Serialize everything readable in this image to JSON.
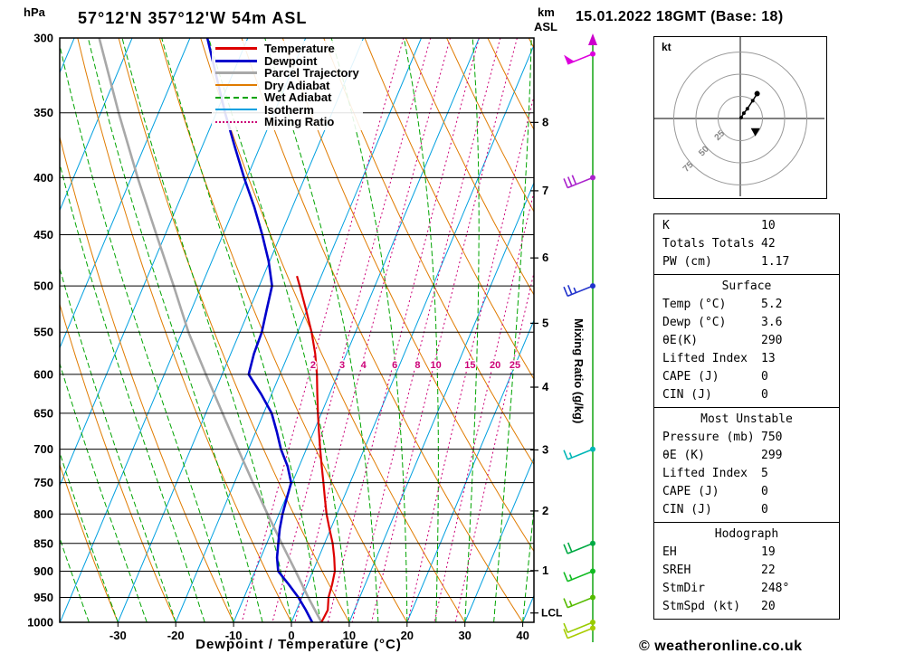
{
  "header": {
    "pressure_unit": "hPa",
    "title": "57°12'N 357°12'W 54m ASL",
    "km_label": "km",
    "asl_label": "ASL",
    "datetime": "15.01.2022 18GMT (Base: 18)"
  },
  "axes": {
    "x_label": "Dewpoint / Temperature (°C)",
    "mixing_ratio_label": "Mixing Ratio (g/kg)",
    "lcl_label": "LCL"
  },
  "legend": {
    "items": [
      {
        "label": "Temperature",
        "color": "#dd0000",
        "weight": 3,
        "line_style": "solid"
      },
      {
        "label": "Dewpoint",
        "color": "#0000cc",
        "weight": 3,
        "line_style": "solid"
      },
      {
        "label": "Parcel Trajectory",
        "color": "#a8a8a8",
        "weight": 3,
        "line_style": "solid"
      },
      {
        "label": "Dry Adiabat",
        "color": "#e07b00",
        "weight": 2,
        "line_style": "solid"
      },
      {
        "label": "Wet Adiabat",
        "color": "#00a400",
        "weight": 2,
        "line_style": "dashed"
      },
      {
        "label": "Isotherm",
        "color": "#00a0e0",
        "weight": 2,
        "line_style": "solid"
      },
      {
        "label": "Mixing Ratio",
        "color": "#cc0077",
        "weight": 2,
        "line_style": "dotted"
      }
    ]
  },
  "hodograph": {
    "kt_label": "kt",
    "rings_kt": [
      25,
      50,
      75
    ],
    "trace_uv_kt": [
      [
        1,
        1
      ],
      [
        4,
        6
      ],
      [
        8,
        11
      ],
      [
        14,
        20
      ],
      [
        19,
        28
      ]
    ],
    "storm_marker_uv_kt": [
      17,
      -15
    ]
  },
  "panels": {
    "indices": {
      "rows": [
        {
          "label": "K",
          "value": "10"
        },
        {
          "label": "Totals Totals",
          "value": "42"
        },
        {
          "label": "PW (cm)",
          "value": "1.17"
        }
      ]
    },
    "surface": {
      "title": "Surface",
      "rows": [
        {
          "label": "Temp (°C)",
          "value": "5.2"
        },
        {
          "label": "Dewp (°C)",
          "value": "3.6"
        },
        {
          "label": "θE(K)",
          "value": "290"
        },
        {
          "label": "Lifted Index",
          "value": "13"
        },
        {
          "label": "CAPE (J)",
          "value": "0"
        },
        {
          "label": "CIN (J)",
          "value": "0"
        }
      ]
    },
    "most_unstable": {
      "title": "Most Unstable",
      "rows": [
        {
          "label": "Pressure (mb)",
          "value": "750"
        },
        {
          "label": "θE (K)",
          "value": "299"
        },
        {
          "label": "Lifted Index",
          "value": "5"
        },
        {
          "label": "CAPE (J)",
          "value": "0"
        },
        {
          "label": "CIN (J)",
          "value": "0"
        }
      ]
    },
    "hodograph_stats": {
      "title": "Hodograph",
      "rows": [
        {
          "label": "EH",
          "value": "19"
        },
        {
          "label": "SREH",
          "value": "22"
        },
        {
          "label": "StmDir",
          "value": "248°"
        },
        {
          "label": "StmSpd (kt)",
          "value": "20"
        }
      ]
    }
  },
  "footer": {
    "text": "© weatheronline.co.uk"
  },
  "chart_data": {
    "type": "skewt-logp",
    "title": "57°12'N 357°12'W 54m ASL sounding 15.01.2022 18GMT",
    "pressure_levels_hpa": [
      300,
      350,
      400,
      450,
      500,
      550,
      600,
      650,
      700,
      750,
      800,
      850,
      900,
      950,
      1000
    ],
    "temp_ticks_c": [
      -30,
      -20,
      -10,
      0,
      10,
      20,
      30,
      40
    ],
    "km_ticks": [
      {
        "km": 8,
        "hpa": 357
      },
      {
        "km": 7,
        "hpa": 411
      },
      {
        "km": 6,
        "hpa": 472
      },
      {
        "km": 5,
        "hpa": 540
      },
      {
        "km": 4,
        "hpa": 616
      },
      {
        "km": 3,
        "hpa": 701
      },
      {
        "km": 2,
        "hpa": 795
      },
      {
        "km": 1,
        "hpa": 899
      }
    ],
    "lcl_hpa": 981,
    "isotherms_c": {
      "min": -110,
      "max": 40,
      "step": 10
    },
    "dry_adiabats_theta_c": {
      "min": -60,
      "max": 170,
      "step": 10
    },
    "wet_adiabats_thetaw_c": {
      "min": -40,
      "max": 40,
      "step": 5
    },
    "mixing_ratio_gkg": [
      2,
      3,
      4,
      6,
      8,
      10,
      15,
      20,
      25
    ],
    "series": {
      "temperature": [
        [
          1000,
          5.2
        ],
        [
          975,
          5.4
        ],
        [
          950,
          4.6
        ],
        [
          925,
          4.3
        ],
        [
          900,
          3.8
        ],
        [
          875,
          2.7
        ],
        [
          850,
          1.4
        ],
        [
          825,
          -0.2
        ],
        [
          800,
          -1.8
        ],
        [
          775,
          -3.2
        ],
        [
          750,
          -4.6
        ],
        [
          725,
          -6.1
        ],
        [
          700,
          -7.6
        ],
        [
          675,
          -9.1
        ],
        [
          650,
          -10.6
        ],
        [
          625,
          -12.1
        ],
        [
          600,
          -13.6
        ],
        [
          575,
          -15.4
        ],
        [
          550,
          -17.6
        ],
        [
          525,
          -20.2
        ],
        [
          500,
          -23.0
        ],
        [
          490,
          -24.2
        ]
      ],
      "dewpoint": [
        [
          1000,
          3.6
        ],
        [
          975,
          1.6
        ],
        [
          950,
          -0.6
        ],
        [
          925,
          -3.2
        ],
        [
          900,
          -6.0
        ],
        [
          875,
          -7.2
        ],
        [
          850,
          -8.0
        ],
        [
          825,
          -8.8
        ],
        [
          800,
          -9.4
        ],
        [
          775,
          -9.8
        ],
        [
          750,
          -10.2
        ],
        [
          725,
          -12.0
        ],
        [
          700,
          -14.4
        ],
        [
          675,
          -16.4
        ],
        [
          650,
          -18.6
        ],
        [
          625,
          -21.8
        ],
        [
          600,
          -25.4
        ],
        [
          575,
          -26.0
        ],
        [
          550,
          -26.2
        ],
        [
          525,
          -27.0
        ],
        [
          500,
          -27.8
        ],
        [
          475,
          -30.2
        ],
        [
          450,
          -33.2
        ],
        [
          425,
          -36.6
        ],
        [
          400,
          -40.5
        ],
        [
          375,
          -44.4
        ],
        [
          350,
          -48.5
        ],
        [
          325,
          -52.6
        ],
        [
          300,
          -57.0
        ]
      ],
      "parcel": [
        [
          1000,
          5.2
        ],
        [
          950,
          1.1
        ],
        [
          900,
          -3.0
        ],
        [
          850,
          -7.4
        ],
        [
          800,
          -12.0
        ],
        [
          750,
          -16.8
        ],
        [
          700,
          -21.8
        ],
        [
          650,
          -27.1
        ],
        [
          600,
          -32.8
        ],
        [
          550,
          -38.9
        ],
        [
          500,
          -44.8
        ],
        [
          450,
          -51.5
        ],
        [
          400,
          -58.9
        ],
        [
          350,
          -66.9
        ],
        [
          300,
          -75.7
        ]
      ]
    },
    "wind_barbs": [
      {
        "hpa": 310,
        "speed_kt": 50,
        "color": "#dd00dd"
      },
      {
        "hpa": 400,
        "speed_kt": 30,
        "color": "#aa22cc"
      },
      {
        "hpa": 500,
        "speed_kt": 25,
        "color": "#2233cc"
      },
      {
        "hpa": 700,
        "speed_kt": 15,
        "color": "#00b6b6"
      },
      {
        "hpa": 850,
        "speed_kt": 20,
        "color": "#00aa44"
      },
      {
        "hpa": 900,
        "speed_kt": 15,
        "color": "#11bb22"
      },
      {
        "hpa": 950,
        "speed_kt": 15,
        "color": "#55bb00"
      },
      {
        "hpa": 1000,
        "speed_kt": 10,
        "color": "#99cc00"
      },
      {
        "hpa": 1012,
        "speed_kt": 10,
        "color": "#aacc00"
      }
    ],
    "colors": {
      "temperature": "#dd0000",
      "dewpoint": "#0000cc",
      "parcel": "#a8a8a8",
      "dry_adiabat": "#e07b00",
      "wet_adiabat": "#00a400",
      "isotherm": "#00a0e0",
      "mixing_ratio": "#cc0077",
      "grid": "#000000",
      "wind_staff": "#22aa22"
    }
  }
}
